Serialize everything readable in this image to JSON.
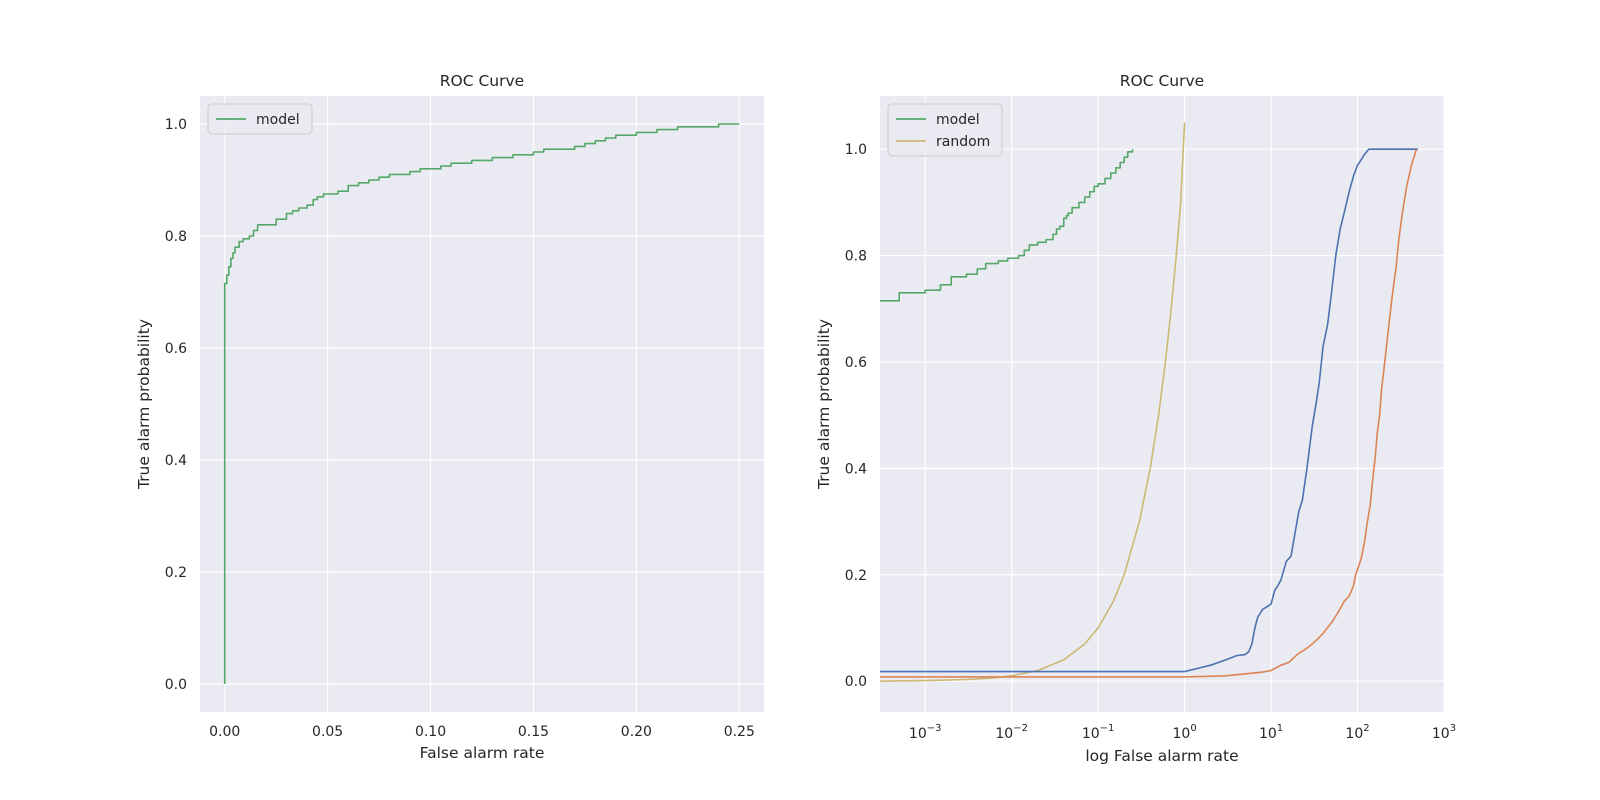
{
  "chart_data": [
    {
      "type": "line",
      "title": "ROC Curve",
      "xlabel": "False alarm rate",
      "ylabel": "True alarm probability",
      "xlim": [
        -0.012,
        0.262
      ],
      "ylim": [
        -0.05,
        1.05
      ],
      "x_scale": "linear",
      "grid": true,
      "legend_position": "top-left",
      "x_ticks": [
        {
          "value": 0.0,
          "label": "0.00"
        },
        {
          "value": 0.05,
          "label": "0.05"
        },
        {
          "value": 0.1,
          "label": "0.10"
        },
        {
          "value": 0.15,
          "label": "0.15"
        },
        {
          "value": 0.2,
          "label": "0.20"
        },
        {
          "value": 0.25,
          "label": "0.25"
        }
      ],
      "y_ticks": [
        {
          "value": 0.0,
          "label": "0.0"
        },
        {
          "value": 0.2,
          "label": "0.2"
        },
        {
          "value": 0.4,
          "label": "0.4"
        },
        {
          "value": 0.6,
          "label": "0.6"
        },
        {
          "value": 0.8,
          "label": "0.8"
        },
        {
          "value": 1.0,
          "label": "1.0"
        }
      ],
      "series": [
        {
          "name": "model",
          "color": "#55a868",
          "step": true,
          "x": [
            0.0,
            0.0,
            0.001,
            0.002,
            0.003,
            0.004,
            0.005,
            0.007,
            0.009,
            0.012,
            0.014,
            0.016,
            0.02,
            0.025,
            0.03,
            0.033,
            0.036,
            0.04,
            0.043,
            0.045,
            0.048,
            0.05,
            0.055,
            0.06,
            0.062,
            0.065,
            0.07,
            0.075,
            0.08,
            0.085,
            0.09,
            0.095,
            0.1,
            0.105,
            0.11,
            0.115,
            0.12,
            0.125,
            0.13,
            0.14,
            0.145,
            0.15,
            0.155,
            0.16,
            0.17,
            0.175,
            0.18,
            0.185,
            0.19,
            0.2,
            0.21,
            0.215,
            0.22,
            0.23,
            0.24,
            0.25
          ],
          "y": [
            0.0,
            0.715,
            0.73,
            0.745,
            0.76,
            0.77,
            0.78,
            0.79,
            0.795,
            0.8,
            0.81,
            0.82,
            0.82,
            0.83,
            0.84,
            0.845,
            0.85,
            0.855,
            0.865,
            0.87,
            0.875,
            0.875,
            0.88,
            0.89,
            0.89,
            0.895,
            0.9,
            0.905,
            0.91,
            0.91,
            0.915,
            0.92,
            0.92,
            0.925,
            0.93,
            0.93,
            0.935,
            0.935,
            0.94,
            0.945,
            0.945,
            0.95,
            0.955,
            0.955,
            0.96,
            0.965,
            0.97,
            0.975,
            0.98,
            0.985,
            0.99,
            0.99,
            0.995,
            0.995,
            1.0,
            1.0
          ]
        }
      ]
    },
    {
      "type": "line",
      "title": "ROC Curve",
      "xlabel": "log False alarm rate",
      "ylabel": "True alarm probability",
      "xlim": [
        0.0003,
        1000
      ],
      "ylim": [
        -0.058,
        1.1
      ],
      "x_scale": "log",
      "grid": true,
      "legend_position": "top-left",
      "x_ticks": [
        {
          "value": 0.001,
          "base": "10",
          "exp": "−3"
        },
        {
          "value": 0.01,
          "base": "10",
          "exp": "−2"
        },
        {
          "value": 0.1,
          "base": "10",
          "exp": "−1"
        },
        {
          "value": 1,
          "base": "10",
          "exp": "0"
        },
        {
          "value": 10,
          "base": "10",
          "exp": "1"
        },
        {
          "value": 100,
          "base": "10",
          "exp": "2"
        },
        {
          "value": 1000,
          "base": "10",
          "exp": "3"
        }
      ],
      "y_ticks": [
        {
          "value": 0.0,
          "label": "0.0"
        },
        {
          "value": 0.2,
          "label": "0.2"
        },
        {
          "value": 0.4,
          "label": "0.4"
        },
        {
          "value": 0.6,
          "label": "0.6"
        },
        {
          "value": 0.8,
          "label": "0.8"
        },
        {
          "value": 1.0,
          "label": "1.0"
        }
      ],
      "series": [
        {
          "name": "model",
          "color": "#55a868",
          "step": true,
          "x": [
            0.0003,
            0.0005,
            0.0007,
            0.001,
            0.0015,
            0.002,
            0.003,
            0.004,
            0.005,
            0.007,
            0.009,
            0.012,
            0.014,
            0.016,
            0.02,
            0.025,
            0.03,
            0.033,
            0.036,
            0.04,
            0.043,
            0.045,
            0.05,
            0.06,
            0.07,
            0.08,
            0.09,
            0.1,
            0.12,
            0.14,
            0.16,
            0.18,
            0.2,
            0.22,
            0.25
          ],
          "y": [
            0.715,
            0.73,
            0.73,
            0.735,
            0.745,
            0.76,
            0.765,
            0.775,
            0.785,
            0.79,
            0.795,
            0.8,
            0.81,
            0.82,
            0.825,
            0.83,
            0.84,
            0.85,
            0.855,
            0.87,
            0.875,
            0.88,
            0.89,
            0.9,
            0.91,
            0.92,
            0.93,
            0.935,
            0.945,
            0.955,
            0.965,
            0.975,
            0.985,
            0.995,
            1.0
          ]
        },
        {
          "name": "random",
          "color": "#ccb974",
          "step": false,
          "x": [
            0.0003,
            0.001,
            0.003,
            0.006,
            0.01,
            0.02,
            0.04,
            0.07,
            0.1,
            0.15,
            0.2,
            0.3,
            0.4,
            0.5,
            0.6,
            0.7,
            0.8,
            0.9,
            1.0
          ],
          "y": [
            0.0,
            0.001,
            0.003,
            0.006,
            0.01,
            0.02,
            0.04,
            0.07,
            0.1,
            0.15,
            0.2,
            0.3,
            0.4,
            0.5,
            0.6,
            0.7,
            0.8,
            0.9,
            1.05
          ]
        },
        {
          "color": "#4c72b0",
          "step": false,
          "x": [
            0.0003,
            0.01,
            0.1,
            1.0,
            1.5,
            2,
            3,
            4,
            5,
            5.5,
            6,
            6.5,
            7,
            8,
            9,
            10,
            11,
            12,
            13,
            15,
            17,
            19,
            21,
            23,
            26,
            30,
            33,
            36,
            40,
            45,
            50,
            56,
            63,
            70,
            80,
            90,
            100,
            110,
            120,
            135,
            150,
            170,
            200,
            250,
            300,
            400,
            500
          ],
          "y": [
            0.018,
            0.018,
            0.018,
            0.018,
            0.025,
            0.03,
            0.04,
            0.048,
            0.05,
            0.055,
            0.07,
            0.1,
            0.12,
            0.135,
            0.14,
            0.145,
            0.17,
            0.18,
            0.19,
            0.225,
            0.235,
            0.28,
            0.32,
            0.34,
            0.4,
            0.48,
            0.52,
            0.56,
            0.63,
            0.67,
            0.73,
            0.8,
            0.85,
            0.88,
            0.92,
            0.95,
            0.97,
            0.98,
            0.99,
            1.0,
            1.0,
            1.0,
            1.0,
            1.0,
            1.0,
            1.0,
            1.0
          ]
        },
        {
          "color": "#dd8452",
          "step": false,
          "x": [
            0.0003,
            0.01,
            0.1,
            1.0,
            3,
            6,
            8,
            10,
            13,
            16,
            20,
            25,
            30,
            35,
            40,
            50,
            60,
            70,
            80,
            90,
            95,
            100,
            110,
            120,
            130,
            140,
            150,
            160,
            170,
            180,
            190,
            200,
            220,
            250,
            280,
            300,
            330,
            370,
            420,
            480
          ],
          "y": [
            0.008,
            0.008,
            0.008,
            0.008,
            0.01,
            0.015,
            0.017,
            0.02,
            0.03,
            0.035,
            0.05,
            0.06,
            0.07,
            0.08,
            0.09,
            0.11,
            0.13,
            0.15,
            0.16,
            0.18,
            0.2,
            0.21,
            0.23,
            0.26,
            0.3,
            0.33,
            0.38,
            0.42,
            0.47,
            0.5,
            0.55,
            0.58,
            0.64,
            0.72,
            0.78,
            0.83,
            0.88,
            0.93,
            0.97,
            1.0
          ]
        }
      ]
    }
  ]
}
